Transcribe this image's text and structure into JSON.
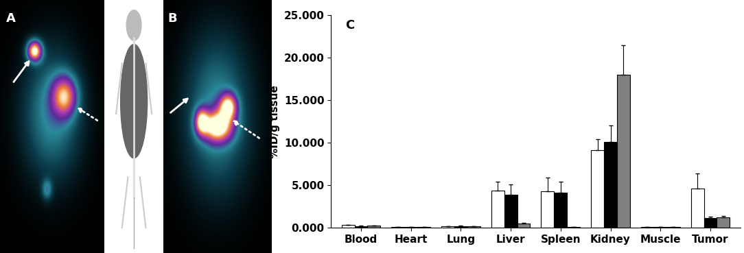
{
  "panels": [
    "A",
    "B"
  ],
  "chart_data": {
    "type": "bar",
    "title": "C",
    "ylabel": "%ID/g tissue",
    "categories": [
      "Blood",
      "Heart",
      "Lung",
      "Liver",
      "Spleen",
      "Kidney",
      "Muscle",
      "Tumor"
    ],
    "series": [
      {
        "color": "#ffffff",
        "values": [
          0.3,
          0.1,
          0.15,
          4.4,
          4.3,
          9.1,
          0.1,
          4.6
        ],
        "errors": [
          0.05,
          0.02,
          0.03,
          1.0,
          1.6,
          1.3,
          0.02,
          1.8
        ]
      },
      {
        "color": "#000000",
        "values": [
          0.2,
          0.1,
          0.2,
          3.9,
          4.1,
          10.1,
          0.05,
          1.1
        ],
        "errors": [
          0.04,
          0.02,
          0.04,
          1.2,
          1.3,
          1.9,
          0.01,
          0.2
        ]
      },
      {
        "color": "#808080",
        "values": [
          0.25,
          0.1,
          0.15,
          0.5,
          0.1,
          18.0,
          0.05,
          1.2
        ],
        "errors": [
          0.04,
          0.02,
          0.03,
          0.05,
          0.02,
          3.5,
          0.01,
          0.2
        ]
      }
    ],
    "ylim": [
      0,
      25
    ],
    "yticks": [
      {
        "value": 0,
        "label": "0.000"
      },
      {
        "value": 5,
        "label": "5.000"
      },
      {
        "value": 10,
        "label": "10.000"
      },
      {
        "value": 15,
        "label": "15.000"
      },
      {
        "value": 20,
        "label": "20.000"
      },
      {
        "value": 25,
        "label": "25.000"
      }
    ],
    "grid": false
  }
}
